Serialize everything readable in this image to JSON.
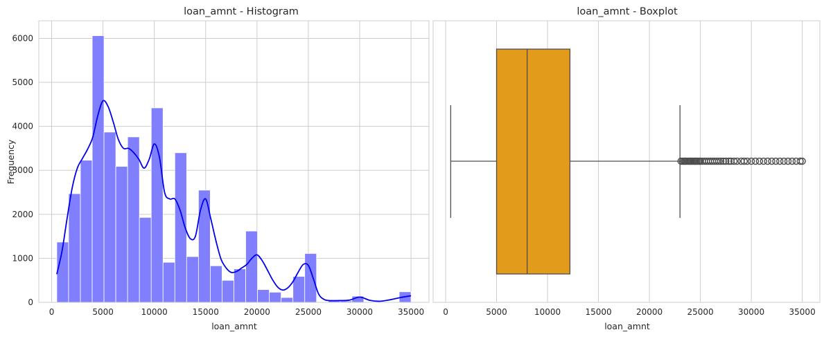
{
  "chart_data": [
    {
      "type": "bar",
      "subtype": "histogram-with-kde",
      "title": "loan_amnt - Histogram",
      "xlabel": "loan_amnt",
      "ylabel": "Frequency",
      "xlim": [
        -1250,
        36750
      ],
      "ylim": [
        0,
        6400
      ],
      "xticks": [
        0,
        5000,
        10000,
        15000,
        20000,
        25000,
        30000,
        35000
      ],
      "yticks": [
        0,
        1000,
        2000,
        3000,
        4000,
        5000,
        6000
      ],
      "grid": true,
      "bar_color": "#8080ff",
      "kde_color": "#0000ee",
      "bins": {
        "start": 500,
        "width": 1150,
        "counts": [
          1370,
          2470,
          3230,
          6060,
          3870,
          3090,
          3760,
          1930,
          4420,
          910,
          3400,
          1040,
          2550,
          830,
          500,
          760,
          1620,
          290,
          230,
          110,
          590,
          1110,
          0,
          60,
          30,
          140,
          0,
          0,
          0,
          240
        ]
      },
      "kde": {
        "x": [
          500,
          1000,
          1500,
          2000,
          2500,
          3000,
          3500,
          4000,
          4500,
          5000,
          5500,
          6000,
          6500,
          7000,
          7500,
          8000,
          8500,
          9000,
          9500,
          10000,
          10500,
          11000,
          11500,
          12000,
          12500,
          13000,
          13500,
          14000,
          14500,
          15000,
          15500,
          16000,
          16500,
          17000,
          17500,
          18000,
          18500,
          19000,
          19500,
          20000,
          20500,
          21000,
          21500,
          22000,
          22500,
          23000,
          23500,
          24000,
          24500,
          25000,
          25500,
          26000,
          26500,
          27000,
          28000,
          29000,
          30000,
          31000,
          32000,
          33000,
          34000,
          35000
        ],
        "y": [
          640,
          1150,
          1900,
          2600,
          3050,
          3270,
          3480,
          3750,
          4250,
          4580,
          4450,
          4100,
          3700,
          3500,
          3500,
          3400,
          3250,
          3050,
          3250,
          3600,
          3300,
          2500,
          2350,
          2350,
          2100,
          1700,
          1450,
          1500,
          2100,
          2350,
          1900,
          1400,
          980,
          780,
          680,
          700,
          780,
          860,
          1000,
          1080,
          950,
          740,
          520,
          350,
          280,
          330,
          470,
          680,
          860,
          840,
          530,
          190,
          70,
          40,
          40,
          50,
          120,
          45,
          25,
          60,
          110,
          150
        ]
      }
    },
    {
      "type": "boxplot",
      "orientation": "horizontal",
      "title": "loan_amnt - Boxplot",
      "xlabel": "loan_amnt",
      "xlim": [
        -1225,
        36725
      ],
      "xticks": [
        0,
        5000,
        10000,
        15000,
        20000,
        25000,
        30000,
        35000
      ],
      "grid": true,
      "box_color": "#e39b1c",
      "line_color": "#4d4d4d",
      "stats": {
        "whisker_low": 500,
        "q1": 5000,
        "median": 8000,
        "q3": 12200,
        "whisker_high": 23000
      },
      "outliers": [
        23100,
        23250,
        23400,
        23500,
        23600,
        23750,
        23900,
        24000,
        24100,
        24250,
        24400,
        24500,
        24600,
        24750,
        24900,
        25000,
        25200,
        25400,
        25600,
        25800,
        26000,
        26200,
        26400,
        26600,
        26800,
        27000,
        27250,
        27500,
        27800,
        28000,
        28300,
        28600,
        29000,
        29300,
        29600,
        30000,
        30400,
        30800,
        31200,
        31600,
        32000,
        32400,
        32800,
        33200,
        33600,
        34000,
        34400,
        34800,
        35000
      ]
    }
  ]
}
